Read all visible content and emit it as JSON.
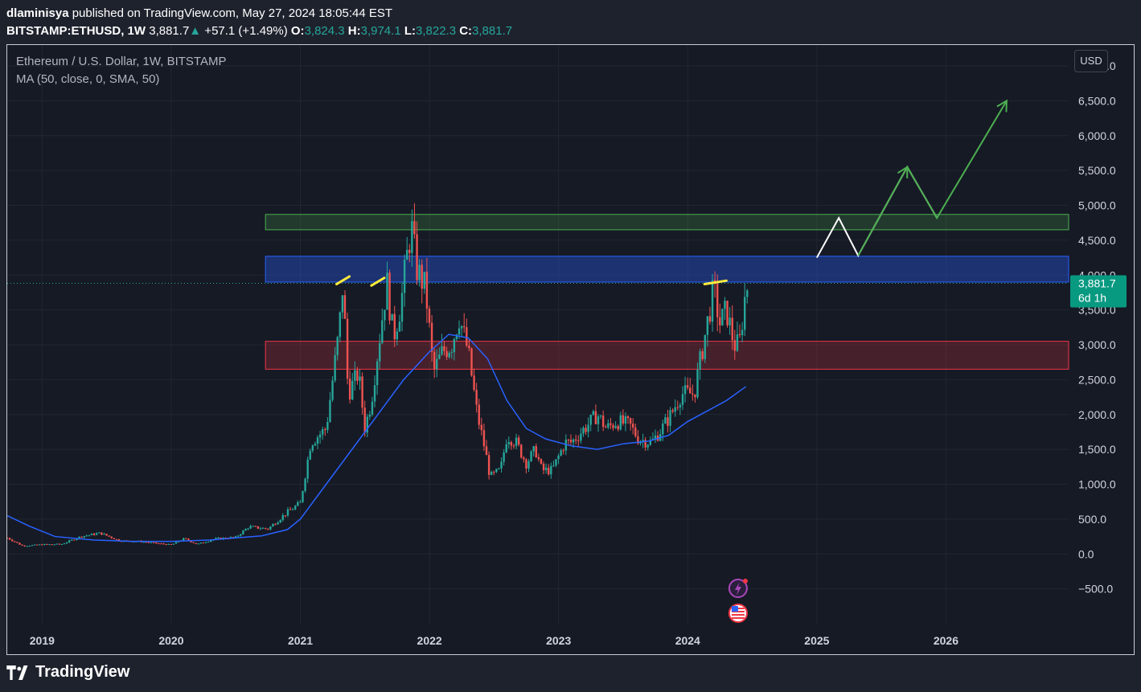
{
  "header": {
    "publisher": "dlaminisya",
    "published_text": " published on TradingView.com, May 27, 2024 18:05:44 EST",
    "symbol": "BITSTAMP:ETHUSD, 1W",
    "last": "3,881.7",
    "change": "+57.1 (+1.49%)",
    "o_label": "O:",
    "o": "3,824.3",
    "h_label": "H:",
    "h": "3,974.1",
    "l_label": "L:",
    "l": "3,822.3",
    "c_label": "C:",
    "c": "3,881.7"
  },
  "legend": {
    "title": "Ethereum / U.S. Dollar, 1W, BITSTAMP",
    "indicator": "MA (50, close, 0, SMA, 50)"
  },
  "currency_button": "USD",
  "footer": {
    "brand": "TradingView"
  },
  "colors": {
    "up": "#26a69a",
    "down": "#ef5350",
    "ma": "#2962ff",
    "zone_green": "#4caf50",
    "zone_blue": "#2962ff",
    "zone_red": "#f23645"
  },
  "chart_data": {
    "type": "candlestick",
    "x_axis": {
      "tick_labels": [
        "2019",
        "2020",
        "2021",
        "2022",
        "2023",
        "2024",
        "2025",
        "2026"
      ],
      "range": [
        2018.73,
        2026.95
      ]
    },
    "y_axis": {
      "tick_values": [
        7000,
        6500,
        6000,
        5500,
        5000,
        4500,
        4000,
        3500,
        3000,
        2500,
        2000,
        1500,
        1000,
        500,
        0,
        -500
      ],
      "tick_labels": [
        "7,000.0",
        "6,500.0",
        "6,000.0",
        "5,500.0",
        "5,000.0",
        "4,500.0",
        "4,000.0",
        "3,500.0",
        "3,000.0",
        "2,500.0",
        "2,000.0",
        "1,500.0",
        "1,000.0",
        "500.0",
        "0.0",
        "−500.0"
      ],
      "range": [
        -1000,
        7300
      ]
    },
    "grid": true,
    "price_label": {
      "value": 3881.7,
      "text": "3,881.7",
      "countdown": "6d 1h"
    },
    "close_path": [
      [
        2018.73,
        230
      ],
      [
        2018.85,
        115
      ],
      [
        2019.0,
        135
      ],
      [
        2019.15,
        140
      ],
      [
        2019.3,
        250
      ],
      [
        2019.45,
        300
      ],
      [
        2019.6,
        190
      ],
      [
        2019.75,
        180
      ],
      [
        2019.9,
        150
      ],
      [
        2020.0,
        130
      ],
      [
        2020.1,
        220
      ],
      [
        2020.2,
        140
      ],
      [
        2020.35,
        220
      ],
      [
        2020.5,
        240
      ],
      [
        2020.6,
        390
      ],
      [
        2020.75,
        360
      ],
      [
        2020.9,
        600
      ],
      [
        2021.0,
        730
      ],
      [
        2021.08,
        1600
      ],
      [
        2021.2,
        1800
      ],
      [
        2021.3,
        3200
      ],
      [
        2021.33,
        3900
      ],
      [
        2021.37,
        2300
      ],
      [
        2021.45,
        2600
      ],
      [
        2021.5,
        1800
      ],
      [
        2021.55,
        2200
      ],
      [
        2021.62,
        3200
      ],
      [
        2021.67,
        3900
      ],
      [
        2021.72,
        3100
      ],
      [
        2021.78,
        3600
      ],
      [
        2021.82,
        4200
      ],
      [
        2021.86,
        4700
      ],
      [
        2021.9,
        4100
      ],
      [
        2021.97,
        3800
      ],
      [
        2022.03,
        2600
      ],
      [
        2022.1,
        2900
      ],
      [
        2022.17,
        3000
      ],
      [
        2022.23,
        3400
      ],
      [
        2022.3,
        2900
      ],
      [
        2022.37,
        2000
      ],
      [
        2022.43,
        1500
      ],
      [
        2022.47,
        1100
      ],
      [
        2022.55,
        1200
      ],
      [
        2022.6,
        1700
      ],
      [
        2022.67,
        1600
      ],
      [
        2022.75,
        1300
      ],
      [
        2022.82,
        1500
      ],
      [
        2022.87,
        1200
      ],
      [
        2022.95,
        1200
      ],
      [
        2023.05,
        1600
      ],
      [
        2023.1,
        1600
      ],
      [
        2023.2,
        1800
      ],
      [
        2023.3,
        2000
      ],
      [
        2023.37,
        1800
      ],
      [
        2023.45,
        1900
      ],
      [
        2023.55,
        1850
      ],
      [
        2023.62,
        1650
      ],
      [
        2023.72,
        1600
      ],
      [
        2023.8,
        1800
      ],
      [
        2023.87,
        2000
      ],
      [
        2023.95,
        2300
      ],
      [
        2024.05,
        2300
      ],
      [
        2024.12,
        3000
      ],
      [
        2024.2,
        3800
      ],
      [
        2024.25,
        3300
      ],
      [
        2024.3,
        3500
      ],
      [
        2024.36,
        3000
      ],
      [
        2024.4,
        3000
      ],
      [
        2024.45,
        3800
      ],
      [
        2024.47,
        3881.7
      ]
    ],
    "ma_series": {
      "name": "MA (50, close, 0, SMA, 50)",
      "points": [
        [
          2018.73,
          550
        ],
        [
          2018.9,
          400
        ],
        [
          2019.1,
          250
        ],
        [
          2019.4,
          200
        ],
        [
          2019.7,
          180
        ],
        [
          2020.0,
          180
        ],
        [
          2020.3,
          200
        ],
        [
          2020.5,
          230
        ],
        [
          2020.7,
          260
        ],
        [
          2020.9,
          350
        ],
        [
          2021.0,
          500
        ],
        [
          2021.2,
          1000
        ],
        [
          2021.4,
          1500
        ],
        [
          2021.6,
          2000
        ],
        [
          2021.8,
          2500
        ],
        [
          2022.0,
          2900
        ],
        [
          2022.15,
          3150
        ],
        [
          2022.3,
          3100
        ],
        [
          2022.45,
          2800
        ],
        [
          2022.6,
          2200
        ],
        [
          2022.75,
          1800
        ],
        [
          2022.9,
          1650
        ],
        [
          2023.1,
          1550
        ],
        [
          2023.3,
          1500
        ],
        [
          2023.5,
          1580
        ],
        [
          2023.7,
          1620
        ],
        [
          2023.85,
          1700
        ],
        [
          2024.0,
          1900
        ],
        [
          2024.15,
          2050
        ],
        [
          2024.3,
          2200
        ],
        [
          2024.45,
          2400
        ]
      ]
    },
    "zones": [
      {
        "color": "green",
        "x_start": 2020.73,
        "x_end": 2026.95,
        "y_low": 4650,
        "y_high": 4870
      },
      {
        "color": "blue",
        "x_start": 2020.73,
        "x_end": 2026.95,
        "y_low": 3900,
        "y_high": 4270
      },
      {
        "color": "red",
        "x_start": 2020.73,
        "x_end": 2026.95,
        "y_low": 2650,
        "y_high": 3050
      }
    ],
    "projection_white": [
      [
        2025.0,
        4250
      ],
      [
        2025.17,
        4820
      ],
      [
        2025.32,
        4280
      ],
      [
        2025.7,
        5550
      ],
      [
        2025.93,
        4820
      ]
    ],
    "projection_green": [
      [
        2025.32,
        4280
      ],
      [
        2025.7,
        5550
      ],
      [
        2025.93,
        4820
      ],
      [
        2026.47,
        6500
      ]
    ],
    "highlights": [
      {
        "x1": 2021.28,
        "y1": 3870,
        "x2": 2021.38,
        "y2": 3980
      },
      {
        "x1": 2021.55,
        "y1": 3850,
        "x2": 2021.65,
        "y2": 3960
      },
      {
        "x1": 2024.13,
        "y1": 3870,
        "x2": 2024.3,
        "y2": 3920
      }
    ]
  }
}
